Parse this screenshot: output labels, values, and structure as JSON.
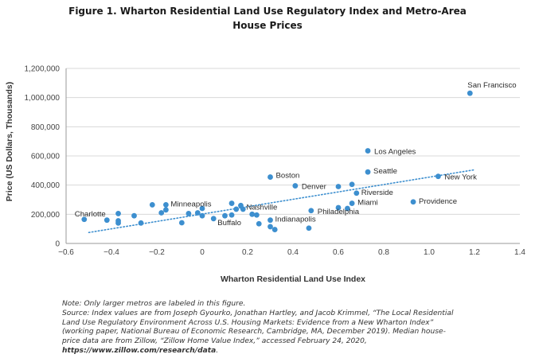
{
  "figure": {
    "title_line1": "Figure 1. Wharton Residential Land Use Regulatory Index and Metro-Area",
    "title_line2": "House Prices"
  },
  "chart_data": {
    "type": "scatter",
    "xlabel": "Wharton Residential Land Use Index",
    "ylabel": "Price (US Dollars, Thousands)",
    "xlim": [
      -0.6,
      1.4
    ],
    "ylim": [
      0,
      1200000
    ],
    "xticks": [
      "−0.6",
      "−0.4",
      "−0.2",
      "0",
      "0.2",
      "0.4",
      "0.6",
      "0.8",
      "1.0",
      "1.2",
      "1.4"
    ],
    "yticks": [
      "0",
      "200,000",
      "400,000",
      "600,000",
      "800,000",
      "1,000,000",
      "1,200,000"
    ],
    "grid": "horizontal",
    "point_color": "#3d8fcf",
    "trendline": {
      "style": "dotted",
      "from": [
        -0.5,
        75000
      ],
      "to": [
        1.2,
        505000
      ]
    },
    "points": [
      {
        "x": -0.52,
        "y": 165000,
        "label": "Charlotte"
      },
      {
        "x": -0.42,
        "y": 160000
      },
      {
        "x": -0.37,
        "y": 205000
      },
      {
        "x": -0.37,
        "y": 155000
      },
      {
        "x": -0.37,
        "y": 140000
      },
      {
        "x": -0.3,
        "y": 190000
      },
      {
        "x": -0.27,
        "y": 140000
      },
      {
        "x": -0.22,
        "y": 265000
      },
      {
        "x": -0.18,
        "y": 210000
      },
      {
        "x": -0.16,
        "y": 265000,
        "label": "Minneapolis"
      },
      {
        "x": -0.16,
        "y": 230000
      },
      {
        "x": -0.09,
        "y": 142000
      },
      {
        "x": -0.06,
        "y": 205000
      },
      {
        "x": -0.02,
        "y": 210000
      },
      {
        "x": 0.0,
        "y": 240000
      },
      {
        "x": 0.0,
        "y": 190000
      },
      {
        "x": 0.05,
        "y": 170000,
        "label": "Buffalo"
      },
      {
        "x": 0.1,
        "y": 190000
      },
      {
        "x": 0.13,
        "y": 275000
      },
      {
        "x": 0.13,
        "y": 195000
      },
      {
        "x": 0.15,
        "y": 235000
      },
      {
        "x": 0.17,
        "y": 260000,
        "label": "Nashville"
      },
      {
        "x": 0.18,
        "y": 235000
      },
      {
        "x": 0.22,
        "y": 200000
      },
      {
        "x": 0.24,
        "y": 195000
      },
      {
        "x": 0.25,
        "y": 135000
      },
      {
        "x": 0.3,
        "y": 455000,
        "label": "Boston"
      },
      {
        "x": 0.3,
        "y": 160000,
        "label": "Indianapolis"
      },
      {
        "x": 0.3,
        "y": 115000
      },
      {
        "x": 0.32,
        "y": 95000
      },
      {
        "x": 0.41,
        "y": 395000,
        "label": "Denver"
      },
      {
        "x": 0.47,
        "y": 105000
      },
      {
        "x": 0.48,
        "y": 225000,
        "label": "Philadelphia"
      },
      {
        "x": 0.6,
        "y": 390000
      },
      {
        "x": 0.6,
        "y": 245000
      },
      {
        "x": 0.64,
        "y": 240000
      },
      {
        "x": 0.66,
        "y": 405000
      },
      {
        "x": 0.66,
        "y": 275000,
        "label": "Miami"
      },
      {
        "x": 0.68,
        "y": 345000,
        "label": "Riverside"
      },
      {
        "x": 0.73,
        "y": 635000,
        "label": "Los Angeles"
      },
      {
        "x": 0.73,
        "y": 490000,
        "label": "Seattle"
      },
      {
        "x": 0.93,
        "y": 285000,
        "label": "Providence"
      },
      {
        "x": 1.04,
        "y": 460000,
        "label": "New York"
      },
      {
        "x": 1.18,
        "y": 1030000,
        "label": "San Francisco"
      }
    ]
  },
  "note": {
    "line1": "Note: Only larger metros are labeled in this figure.",
    "line2": "Source: Index values are from Joseph Gyourko, Jonathan Hartley, and Jacob Krimmel, “The Local Residential",
    "line3": "Land Use Regulatory Environment Across U.S. Housing Markets: Evidence from a New Wharton Index”",
    "line4": "(working paper, National Bureau of Economic Research, Cambridge, MA, December 2019). Median house-",
    "line5": "price data are from Zillow, “Zillow Home Value Index,” accessed February 24, 2020,",
    "url": "https://www.zillow.com/research/data",
    "url_suffix": "."
  }
}
